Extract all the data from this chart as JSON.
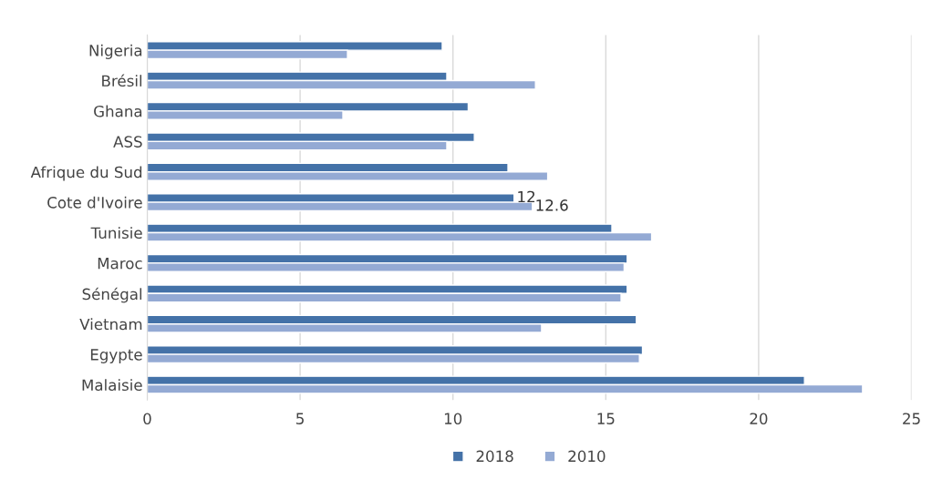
{
  "chart_data": {
    "type": "bar",
    "orientation": "horizontal",
    "categories": [
      "Nigeria",
      "Brésil",
      "Ghana",
      "ASS",
      "Afrique du Sud",
      "Cote d'Ivoire",
      "Tunisie",
      "Maroc",
      "Sénégal",
      "Vietnam",
      "Egypte",
      "Malaisie"
    ],
    "series": [
      {
        "name": "2018",
        "color": "#4472a8",
        "values": [
          9.65,
          9.8,
          10.5,
          10.7,
          11.8,
          12,
          15.2,
          15.7,
          15.7,
          16.0,
          16.2,
          21.5
        ],
        "value_labels": [
          null,
          null,
          null,
          null,
          null,
          "12",
          null,
          null,
          null,
          null,
          null,
          null
        ]
      },
      {
        "name": "2010",
        "color": "#94aad4",
        "values": [
          6.55,
          12.7,
          6.4,
          9.8,
          13.1,
          12.6,
          16.5,
          15.6,
          15.5,
          12.9,
          16.1,
          23.4
        ],
        "value_labels": [
          null,
          null,
          null,
          null,
          null,
          "12.6",
          null,
          null,
          null,
          null,
          null,
          null
        ]
      }
    ],
    "xlim": [
      0,
      25
    ],
    "xticks": [
      0,
      5,
      10,
      15,
      20,
      25
    ],
    "grid": "x",
    "legend": "bottom"
  }
}
